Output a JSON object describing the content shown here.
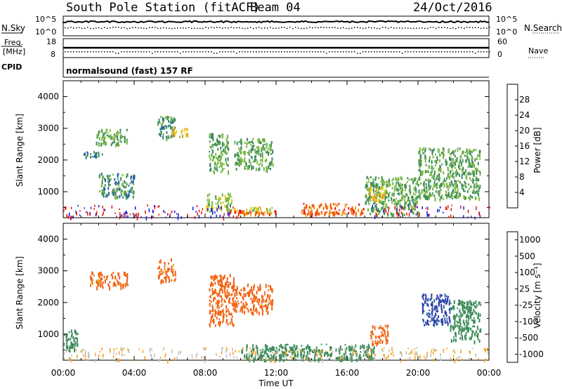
{
  "header": {
    "title": "South Pole Station (fitACF)",
    "beam": "Beam 04",
    "date": "24/Oct/2016"
  },
  "summary_panels": {
    "left_top_label": "N.Sky",
    "left_top_ticks": [
      "10^5",
      "10^0"
    ],
    "right_top_ticks": [
      "10^5",
      "10^0"
    ],
    "right_top_label": "N.Search",
    "left_mid_label_1": "Freq.",
    "left_mid_label_2": "[MHz]",
    "left_mid_ticks": [
      "18",
      "8"
    ],
    "right_mid_ticks": [
      "60",
      "0"
    ],
    "right_mid_label": "Nave",
    "cpid_label": "CPID",
    "cpid_text": "normalsound (fast) 157 RF"
  },
  "axes": {
    "ylabel": "Slant Range [km]",
    "xlabel": "Time UT",
    "y_ticks": [
      "4000",
      "3000",
      "2000",
      "1000"
    ],
    "x_ticks": [
      "00:00",
      "04:00",
      "08:00",
      "12:00",
      "16:00",
      "20:00",
      "00:00"
    ]
  },
  "power_colorbar": {
    "label": "Power [dB]",
    "ticks": [
      "28",
      "24",
      "20",
      "16",
      "12",
      "8",
      "4"
    ],
    "colors": [
      "#e8140f",
      "#f05a0a",
      "#f59a14",
      "#e6c81e",
      "#7ab840",
      "#3e8c5a",
      "#2560a8",
      "#1414e6"
    ]
  },
  "velocity_colorbar": {
    "label": "Velocity [m s⁻¹]",
    "ticks": [
      "1000",
      "500",
      "100",
      "25",
      "-25",
      "-100",
      "-500",
      "-1000"
    ],
    "colors": [
      "#2a3ca8",
      "#2f6eaa",
      "#3e8c5a",
      "#7ab840",
      "#bdbdbd",
      "#f5a014",
      "#f06414",
      "#e8140f"
    ]
  },
  "chart_data": [
    {
      "type": "heatmap",
      "title": "Power",
      "x_range_hours": [
        0,
        24
      ],
      "y_range_km": [
        180,
        4500
      ],
      "zlabel": "Power [dB]",
      "regions": [
        {
          "t": [
            1.0,
            2.2
          ],
          "r": [
            2100,
            2300
          ],
          "dB": 8
        },
        {
          "t": [
            1.8,
            3.6
          ],
          "r": [
            2500,
            3000
          ],
          "dB": 12
        },
        {
          "t": [
            5.3,
            6.3
          ],
          "r": [
            2700,
            3400
          ],
          "dB": 10
        },
        {
          "t": [
            6.0,
            7.0
          ],
          "r": [
            2750,
            3050
          ],
          "dB": 18
        },
        {
          "t": [
            8.2,
            9.3
          ],
          "r": [
            1600,
            2900
          ],
          "dB": 12
        },
        {
          "t": [
            9.6,
            11.8
          ],
          "r": [
            1700,
            2700
          ],
          "dB": 12
        },
        {
          "t": [
            2.0,
            4.0
          ],
          "r": [
            850,
            1600
          ],
          "dB": 10
        },
        {
          "t": [
            8.0,
            9.5
          ],
          "r": [
            400,
            1000
          ],
          "dB": 14
        },
        {
          "t": [
            9.6,
            11.8
          ],
          "r": [
            330,
            550
          ],
          "dB": 18
        },
        {
          "t": [
            10.0,
            12.0
          ],
          "r": [
            300,
            420
          ],
          "dB": 28
        },
        {
          "t": [
            13.3,
            17.0
          ],
          "r": [
            300,
            650
          ],
          "dB": 26
        },
        {
          "t": [
            17.0,
            20.0
          ],
          "r": [
            300,
            1500
          ],
          "dB": 12
        },
        {
          "t": [
            17.2,
            18.2
          ],
          "r": [
            700,
            1200
          ],
          "dB": 18
        },
        {
          "t": [
            20.0,
            23.5
          ],
          "r": [
            800,
            2400
          ],
          "dB": 12
        }
      ]
    },
    {
      "type": "heatmap",
      "title": "Velocity",
      "x_range_hours": [
        0,
        24
      ],
      "y_range_km": [
        180,
        4500
      ],
      "zlabel": "Velocity [m s⁻¹]",
      "regions": [
        {
          "t": [
            0.0,
            0.8
          ],
          "r": [
            450,
            1200
          ],
          "v": 150
        },
        {
          "t": [
            1.5,
            3.6
          ],
          "r": [
            2500,
            3000
          ],
          "v": -100
        },
        {
          "t": [
            5.3,
            6.3
          ],
          "r": [
            2700,
            3400
          ],
          "v": -100
        },
        {
          "t": [
            8.2,
            9.6
          ],
          "r": [
            1300,
            2900
          ],
          "v": -500
        },
        {
          "t": [
            9.6,
            11.8
          ],
          "r": [
            1700,
            2600
          ],
          "v": -300
        },
        {
          "t": [
            10.0,
            17.5
          ],
          "r": [
            200,
            700
          ],
          "v": 150
        },
        {
          "t": [
            17.3,
            18.3
          ],
          "r": [
            700,
            1300
          ],
          "v": -500
        },
        {
          "t": [
            20.2,
            21.8
          ],
          "r": [
            1300,
            2300
          ],
          "v": 900
        },
        {
          "t": [
            21.8,
            23.5
          ],
          "r": [
            800,
            2100
          ],
          "v": 200
        }
      ]
    }
  ]
}
